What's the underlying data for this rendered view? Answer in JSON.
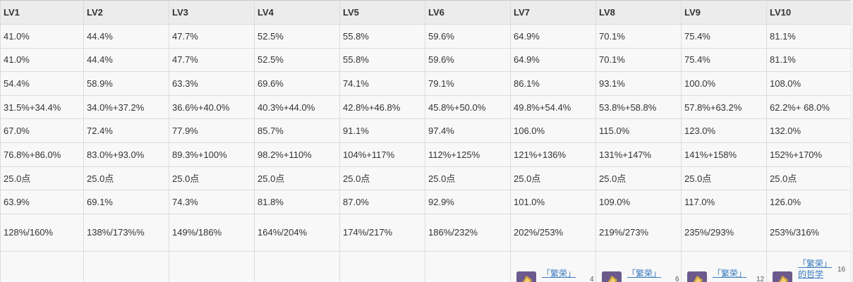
{
  "headers": [
    "LV1",
    "LV2",
    "LV3",
    "LV4",
    "LV5",
    "LV6",
    "LV7",
    "LV8",
    "LV9",
    "LV10"
  ],
  "rows": [
    [
      "41.0%",
      "44.4%",
      "47.7%",
      "52.5%",
      "55.8%",
      "59.6%",
      "64.9%",
      "70.1%",
      "75.4%",
      "81.1%"
    ],
    [
      "41.0%",
      "44.4%",
      "47.7%",
      "52.5%",
      "55.8%",
      "59.6%",
      "64.9%",
      "70.1%",
      "75.4%",
      "81.1%"
    ],
    [
      "54.4%",
      "58.9%",
      "63.3%",
      "69.6%",
      "74.1%",
      "79.1%",
      "86.1%",
      "93.1%",
      "100.0%",
      "108.0%"
    ],
    [
      "31.5%+34.4%",
      "34.0%+37.2%",
      "36.6%+40.0%",
      "40.3%+44.0%",
      "42.8%+46.8%",
      "45.8%+50.0%",
      "49.8%+54.4%",
      "53.8%+58.8%",
      "57.8%+63.2%",
      "62.2%+ 68.0%"
    ],
    [
      "67.0%",
      "72.4%",
      "77.9%",
      "85.7%",
      "91.1%",
      "97.4%",
      "106.0%",
      "115.0%",
      "123.0%",
      "132.0%"
    ],
    [
      "76.8%+86.0%",
      "83.0%+93.0%",
      "89.3%+100%",
      "98.2%+110%",
      "104%+117%",
      "112%+125%",
      "121%+136%",
      "131%+147%",
      "141%+158%",
      "152%+170%"
    ],
    [
      "25.0点",
      "25.0点",
      "25.0点",
      "25.0点",
      "25.0点",
      "25.0点",
      "25.0点",
      "25.0点",
      "25.0点",
      "25.0点"
    ],
    [
      "63.9%",
      "69.1%",
      "74.3%",
      "81.8%",
      "87.0%",
      "92.9%",
      "101.0%",
      "109.0%",
      "117.0%",
      "126.0%"
    ],
    [
      "128%/160%",
      "138%/173%%",
      "149%/186%",
      "164%/204%",
      "174%/217%",
      "186%/232%",
      "202%/253%",
      "219%/273%",
      "235%/293%",
      "253%/316%"
    ]
  ],
  "materials": [
    {
      "link": "",
      "count": ""
    },
    {
      "link": "",
      "count": ""
    },
    {
      "link": "",
      "count": ""
    },
    {
      "link": "",
      "count": ""
    },
    {
      "link": "",
      "count": ""
    },
    {
      "link": "",
      "count": ""
    },
    {
      "link": "「繁荣」",
      "count": "4",
      "icon": "book-icon"
    },
    {
      "link": "「繁荣」",
      "count": "6",
      "icon": "book-icon"
    },
    {
      "link": "「繁荣」",
      "count": "12",
      "icon": "book-icon"
    },
    {
      "link": "「繁荣」\n的哲学",
      "count": "16",
      "icon": "book-icon"
    }
  ],
  "colors": {
    "header_bg": "#ececec",
    "cell_bg": "#f8f8f8",
    "link": "#3a7bbf",
    "icon_bg": "#6d5a8c"
  }
}
